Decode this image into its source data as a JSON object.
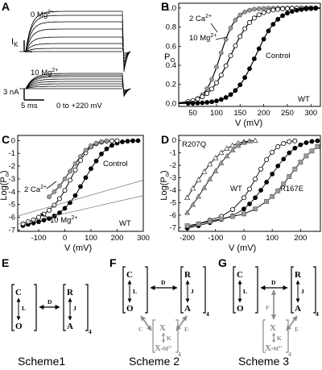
{
  "panels": {
    "A": {
      "label": "A",
      "top_condition": {
        "base": "0 Mg",
        "sup": "2+"
      },
      "bottom_condition": {
        "base": "10 Mg",
        "sup": "2+"
      },
      "current_base": "I",
      "current_sub": "K",
      "scale_current": "3 nA",
      "scale_time": "5 ms",
      "protocol": "0 to +220 mV"
    },
    "B": {
      "label": "B",
      "ylabel": {
        "base": "P",
        "sub": "O"
      },
      "xlabel": "V (mV)",
      "legend": [
        {
          "base": "2 Ca",
          "sup": "2+"
        },
        {
          "base": "10 Mg",
          "sup": "2+"
        },
        {
          "base": "Control",
          "sup": ""
        }
      ],
      "corner": "WT"
    },
    "C": {
      "label": "C",
      "ylabel": "Log(P",
      "ylabel_sub": "o",
      "ylabel_end": ")",
      "xlabel": "V (mV)",
      "ann_control": "Control",
      "ann_ca": {
        "base": "2 Ca",
        "sup": "2+"
      },
      "ann_mg": {
        "base": "10 Mg",
        "sup": "2+"
      },
      "corner": "WT"
    },
    "D": {
      "label": "D",
      "ylabel": "Log(P",
      "ylabel_sub": "o",
      "ylabel_end": ")",
      "xlabel": "V (mV)",
      "ann_r207q": "R207Q",
      "ann_wt": "WT",
      "ann_r167e": "R167E"
    }
  },
  "chart_data": [
    {
      "panel": "B",
      "type": "scatter",
      "xlabel": "V (mV)",
      "ylabel": "PO",
      "xlim": [
        20,
        320
      ],
      "ylim": [
        -0.03,
        1.05
      ],
      "xticks": [
        50,
        100,
        150,
        200,
        250,
        300
      ],
      "yticks": [
        0.0,
        0.2,
        0.4,
        0.6,
        0.8,
        1.0
      ],
      "series": [
        {
          "name": "2 Ca2+",
          "marker": "gray-circle",
          "vhalf": 108,
          "z": 1.55
        },
        {
          "name": "10 Mg2+",
          "marker": "open-circle",
          "vhalf": 130,
          "z": 1.1
        },
        {
          "name": "Control",
          "marker": "filled-circle",
          "vhalf": 183,
          "z": 1.1
        }
      ],
      "x": [
        40,
        50,
        60,
        70,
        80,
        90,
        100,
        110,
        120,
        130,
        140,
        150,
        160,
        170,
        180,
        190,
        200,
        210,
        220,
        230,
        240,
        250,
        260,
        270,
        280,
        290,
        300,
        310
      ]
    },
    {
      "panel": "C",
      "type": "scatter",
      "xlabel": "V (mV)",
      "ylabel": "Log(Po)",
      "xlim": [
        -180,
        300
      ],
      "ylim": [
        -7.1,
        0.4
      ],
      "xticks": [
        -100,
        0,
        100,
        200,
        300
      ],
      "yticks": [
        0,
        -1,
        -2,
        -3,
        -4,
        -5,
        -6,
        -7
      ],
      "series": [
        {
          "name": "Control",
          "marker": "filled-circle",
          "x": [
            -160,
            -140,
            -120,
            -100,
            -80,
            -60,
            -40,
            -20,
            0,
            20,
            40,
            60,
            80,
            100,
            120,
            140,
            160,
            180,
            200,
            220,
            240,
            260,
            280
          ],
          "y": [
            -6.65,
            -6.55,
            -6.45,
            -6.35,
            -6.22,
            -6.1,
            -5.9,
            -5.65,
            -5.3,
            -4.85,
            -4.3,
            -3.6,
            -2.9,
            -2.2,
            -1.6,
            -1.05,
            -0.65,
            -0.38,
            -0.2,
            -0.1,
            -0.05,
            -0.02,
            -0.01
          ]
        },
        {
          "name": "10 Mg2+",
          "marker": "open-circle",
          "x": [
            -160,
            -140,
            -120,
            -100,
            -80,
            -60,
            -40,
            -20,
            0,
            20,
            40,
            60,
            80,
            100,
            120,
            140,
            160,
            180,
            200
          ],
          "y": [
            -6.5,
            -6.35,
            -6.2,
            -6.0,
            -5.75,
            -5.45,
            -5.05,
            -4.55,
            -3.9,
            -3.1,
            -2.3,
            -1.55,
            -0.95,
            -0.5,
            -0.25,
            -0.12,
            -0.05,
            -0.02,
            -0.01
          ]
        },
        {
          "name": "2 Ca2+",
          "marker": "gray-circle",
          "x": [
            -60,
            -40,
            -20,
            0,
            20,
            40,
            60,
            80,
            100,
            120,
            140,
            160
          ],
          "y": [
            -4.4,
            -4.0,
            -3.55,
            -3.0,
            -2.4,
            -1.8,
            -1.25,
            -0.75,
            -0.4,
            -0.2,
            -0.08,
            -0.03
          ]
        },
        {
          "name": "limiting-slope-1",
          "marker": "thin-line",
          "x": [
            -180,
            300
          ],
          "y": [
            -5.9,
            -3.1
          ]
        },
        {
          "name": "limiting-slope-2",
          "marker": "thin-line",
          "x": [
            -180,
            300
          ],
          "y": [
            -6.55,
            -4.3
          ]
        }
      ]
    },
    {
      "panel": "D",
      "type": "scatter",
      "xlabel": "V (mV)",
      "ylabel": "Log(Po)",
      "xlim": [
        -230,
        270
      ],
      "ylim": [
        -7.3,
        0.4
      ],
      "xticks": [
        -200,
        -100,
        0,
        100,
        200
      ],
      "yticks": [
        0,
        -1,
        -2,
        -3,
        -4,
        -5,
        -6,
        -7
      ],
      "series": [
        {
          "name": "R207Q",
          "marker": "open-triangle",
          "x": [
            -200,
            -180,
            -160,
            -140,
            -120,
            -100,
            -80,
            -60,
            -40,
            -20,
            0,
            20,
            40
          ],
          "y": [
            -4.6,
            -3.85,
            -3.15,
            -2.5,
            -1.9,
            -1.4,
            -0.98,
            -0.65,
            -0.4,
            -0.22,
            -0.1,
            -0.04,
            -0.01
          ]
        },
        {
          "name": "R207Q-gray",
          "marker": "gray-triangle",
          "x": [
            -200,
            -180,
            -160,
            -140,
            -120,
            -100,
            -80,
            -60,
            -40,
            -20,
            0,
            20
          ],
          "y": [
            -5.8,
            -5.15,
            -4.5,
            -3.8,
            -3.1,
            -2.45,
            -1.8,
            -1.25,
            -0.78,
            -0.42,
            -0.18,
            -0.06
          ]
        },
        {
          "name": "WT-open",
          "marker": "open-circle",
          "x": [
            -200,
            -160,
            -120,
            -80,
            -40,
            0,
            20,
            40,
            60,
            80,
            100,
            120,
            140,
            160,
            180
          ],
          "y": [
            -7.0,
            -6.7,
            -6.4,
            -6.1,
            -5.55,
            -4.6,
            -3.9,
            -3.1,
            -2.3,
            -1.55,
            -0.95,
            -0.5,
            -0.25,
            -0.1,
            -0.04
          ]
        },
        {
          "name": "WT",
          "marker": "filled-circle",
          "x": [
            -200,
            -160,
            -120,
            -80,
            -40,
            0,
            20,
            40,
            60,
            80,
            100,
            120,
            140,
            160,
            180,
            200,
            220,
            240,
            260
          ],
          "y": [
            -7.05,
            -6.85,
            -6.6,
            -6.35,
            -6.05,
            -5.5,
            -5.1,
            -4.6,
            -4.0,
            -3.35,
            -2.7,
            -2.05,
            -1.5,
            -1.0,
            -0.62,
            -0.35,
            -0.18,
            -0.08,
            -0.03
          ]
        },
        {
          "name": "R167E",
          "marker": "gray-square",
          "x": [
            -200,
            -160,
            -120,
            -80,
            -40,
            0,
            40,
            80,
            100,
            120,
            140,
            160,
            180,
            200,
            220,
            240,
            260
          ],
          "y": [
            -6.85,
            -6.7,
            -6.5,
            -6.3,
            -6.1,
            -5.9,
            -5.5,
            -4.9,
            -4.5,
            -4.05,
            -3.5,
            -2.9,
            -2.3,
            -1.75,
            -1.25,
            -0.85,
            -0.5
          ]
        }
      ]
    }
  ],
  "schemes": {
    "E": {
      "label": "E",
      "title": "Scheme1",
      "left_top": "C",
      "left_bottom": "O",
      "left_rate": "L",
      "link_rate": "D",
      "right_top": "R",
      "right_bottom": "A",
      "right_rate": "J",
      "sub": "4"
    },
    "F": {
      "label": "F",
      "title": "Scheme 2",
      "left_top": "C",
      "left_bottom": "O",
      "left_rate": "L",
      "link_rate": "D",
      "right_top": "R",
      "right_bottom": "A",
      "right_rate": "J",
      "sub": "4",
      "lower_top": "X",
      "lower_bottom": "X",
      "lower_bottom_suffix": "•M",
      "lower_bottom_sup": "2+",
      "lower_rate": "K",
      "lower_sub": "4",
      "left_arrow": "C",
      "right_arrow": "E"
    },
    "G": {
      "label": "G",
      "title": "Scheme 3",
      "left_top": "C",
      "left_bottom": "O",
      "left_rate": "L",
      "link_rate": "D",
      "right_top": "R",
      "right_bottom": "A",
      "right_rate": "J",
      "sub": "4",
      "lower_top": "X",
      "lower_bottom": "X",
      "lower_bottom_suffix": "•M",
      "lower_bottom_sup": "2+",
      "lower_rate": "K",
      "lower_sub": "4",
      "middle_arrow": "F",
      "right_arrow": "E"
    }
  }
}
